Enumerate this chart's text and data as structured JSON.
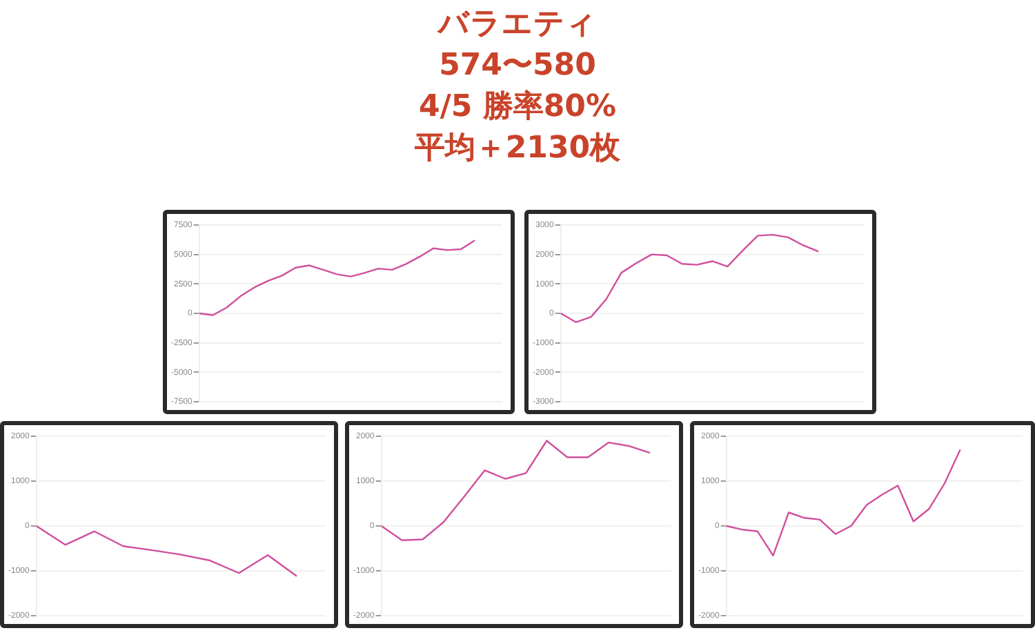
{
  "chart_data": [
    {
      "type": "other",
      "title": "バラエティ",
      "annotations": [
        "574〜580",
        "4/5 勝率80%",
        "平均＋2130枚"
      ]
    },
    {
      "type": "line",
      "categories": [
        null,
        null,
        null,
        null,
        null,
        null,
        null,
        null,
        null,
        null,
        null,
        null,
        null,
        null,
        null,
        null,
        null,
        null,
        null,
        null,
        null,
        null,
        null
      ],
      "series": [
        {
          "color": "#d04f9c",
          "values": [
            0,
            -150,
            500,
            1460,
            2200,
            2760,
            3200,
            3880,
            4070,
            3700,
            3320,
            3130,
            3430,
            3800,
            3700,
            4180,
            4810,
            5520,
            5370,
            5450,
            6200,
            null,
            null
          ]
        }
      ],
      "ylim": [
        -7500,
        7500
      ],
      "yticks": [
        -7500,
        -5000,
        -2500,
        0,
        2500,
        5000,
        7500
      ],
      "grid": "y",
      "tick_labels": "y",
      "marker": "none"
    },
    {
      "type": "line",
      "categories": [
        null,
        null,
        null,
        null,
        null,
        null,
        null,
        null,
        null,
        null,
        null,
        null,
        null,
        null,
        null,
        null,
        null,
        null,
        null,
        null,
        null
      ],
      "series": [
        {
          "color": "#d04f9c",
          "values": [
            0,
            -300,
            -120,
            480,
            1380,
            1710,
            2000,
            1970,
            1680,
            1650,
            1770,
            1590,
            2130,
            2640,
            2670,
            2580,
            2310,
            2100,
            null,
            null,
            null
          ]
        }
      ],
      "ylim": [
        -3000,
        3000
      ],
      "yticks": [
        -3000,
        -2000,
        -1000,
        0,
        1000,
        2000,
        3000
      ],
      "grid": "y",
      "tick_labels": "y",
      "marker": "none"
    },
    {
      "type": "line",
      "categories": [
        null,
        null,
        null,
        null,
        null,
        null,
        null,
        null,
        null,
        null,
        null
      ],
      "series": [
        {
          "color": "#d04f9c",
          "values": [
            0,
            -420,
            -120,
            -450,
            -540,
            -640,
            -770,
            -1050,
            -650,
            -1120,
            null
          ]
        }
      ],
      "ylim": [
        -2000,
        2000
      ],
      "yticks": [
        -2000,
        -1000,
        0,
        1000,
        2000
      ],
      "grid": "y",
      "tick_labels": "y",
      "marker": "none"
    },
    {
      "type": "line",
      "categories": [
        null,
        null,
        null,
        null,
        null,
        null,
        null,
        null,
        null,
        null,
        null,
        null,
        null,
        null,
        null
      ],
      "series": [
        {
          "color": "#d04f9c",
          "values": [
            0,
            -320,
            -300,
            80,
            650,
            1240,
            1050,
            1180,
            1900,
            1530,
            1530,
            1860,
            1780,
            1630,
            null
          ]
        }
      ],
      "ylim": [
        -2000,
        2000
      ],
      "yticks": [
        -2000,
        -1000,
        0,
        1000,
        2000
      ],
      "grid": "y",
      "tick_labels": "y",
      "marker": "none"
    },
    {
      "type": "line",
      "categories": [
        null,
        null,
        null,
        null,
        null,
        null,
        null,
        null,
        null,
        null,
        null,
        null,
        null,
        null,
        null,
        null,
        null,
        null,
        null,
        null
      ],
      "series": [
        {
          "color": "#d04f9c",
          "values": [
            0,
            -80,
            -120,
            -660,
            300,
            180,
            140,
            -180,
            0,
            470,
            700,
            900,
            100,
            380,
            950,
            1700,
            null,
            null,
            null,
            null
          ]
        }
      ],
      "ylim": [
        -2000,
        2000
      ],
      "yticks": [
        -2000,
        -1000,
        0,
        1000,
        2000
      ],
      "grid": "y",
      "tick_labels": "y",
      "marker": "none"
    }
  ]
}
